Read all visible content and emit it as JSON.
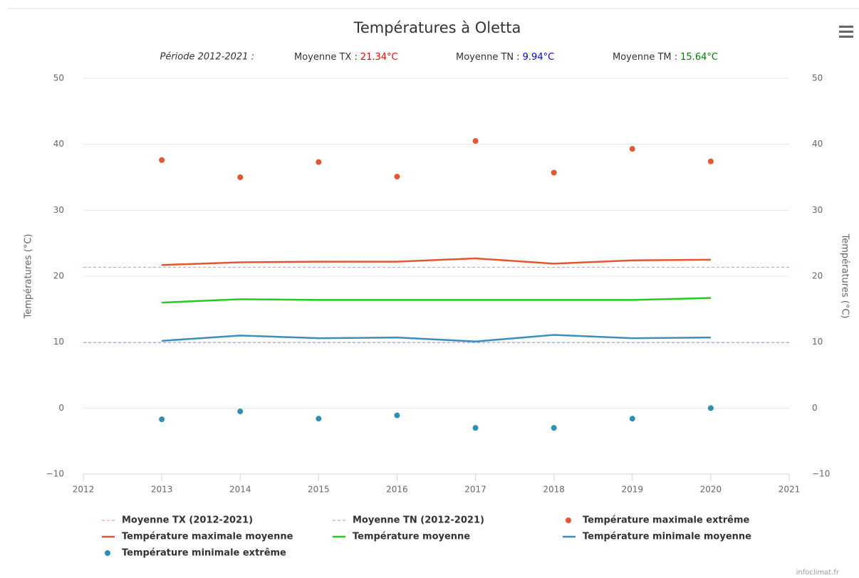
{
  "chart_data": {
    "type": "line",
    "title": "Températures à Oletta",
    "subtitle": {
      "period": "Période 2012-2021 :",
      "items": [
        {
          "label": "Moyenne TX :",
          "value": "21.34°C",
          "color": "#ff0000"
        },
        {
          "label": "Moyenne TN :",
          "value": "9.94°C",
          "color": "#0000ff"
        },
        {
          "label": "Moyenne TM :",
          "value": "15.64°C",
          "color": "#008000"
        }
      ]
    },
    "ylabel": "Températures (°C)",
    "y2label": "Températures (°C)",
    "credit": "infoclimat.fr",
    "x": [
      2013,
      2014,
      2015,
      2016,
      2017,
      2018,
      2019,
      2020
    ],
    "xlim": [
      2012,
      2021
    ],
    "xticks": [
      2012,
      2013,
      2014,
      2015,
      2016,
      2017,
      2018,
      2019,
      2020,
      2021
    ],
    "ylim": [
      -10,
      50
    ],
    "yticks": [
      {
        "value": -10,
        "label": "−10"
      },
      0,
      10,
      20,
      30,
      40,
      50
    ],
    "y2lim": [
      -10,
      50
    ],
    "y2ticks": [
      {
        "value": -10,
        "label": "−10"
      },
      0,
      10,
      20,
      30,
      40,
      50
    ],
    "grid": true,
    "series": [
      {
        "name": "Moyenne TX (2012-2021)",
        "type": "line",
        "dash": true,
        "color": "#ff8080",
        "x": [
          2012,
          2021
        ],
        "values": [
          21.34,
          21.34
        ]
      },
      {
        "name": "Moyenne TN (2012-2021)",
        "type": "line",
        "dash": true,
        "color": "#9090e8",
        "x": [
          2012,
          2021
        ],
        "values": [
          9.94,
          9.94
        ]
      },
      {
        "name": "Température maximale extrême",
        "type": "scatter",
        "color": "#e4572e",
        "values": [
          37.6,
          35.0,
          37.3,
          35.1,
          40.5,
          35.7,
          39.3,
          37.4
        ]
      },
      {
        "name": "Température maximale moyenne",
        "type": "line",
        "color": "#e4572e",
        "values": [
          21.7,
          22.1,
          22.2,
          22.2,
          22.7,
          21.9,
          22.4,
          22.5
        ]
      },
      {
        "name": "Température moyenne",
        "type": "line",
        "color": "#22cc22",
        "values": [
          16.0,
          16.5,
          16.4,
          16.4,
          16.4,
          16.4,
          16.4,
          16.7
        ]
      },
      {
        "name": "Température minimale moyenne",
        "type": "line",
        "color": "#3a8fc0",
        "values": [
          10.2,
          11.0,
          10.6,
          10.7,
          10.1,
          11.1,
          10.6,
          10.7
        ]
      },
      {
        "name": "Température minimale extrême",
        "type": "scatter",
        "color": "#2e8fb5",
        "values": [
          -1.7,
          -0.5,
          -1.6,
          -1.1,
          -3.0,
          -3.0,
          -1.6,
          0.0
        ]
      }
    ]
  }
}
